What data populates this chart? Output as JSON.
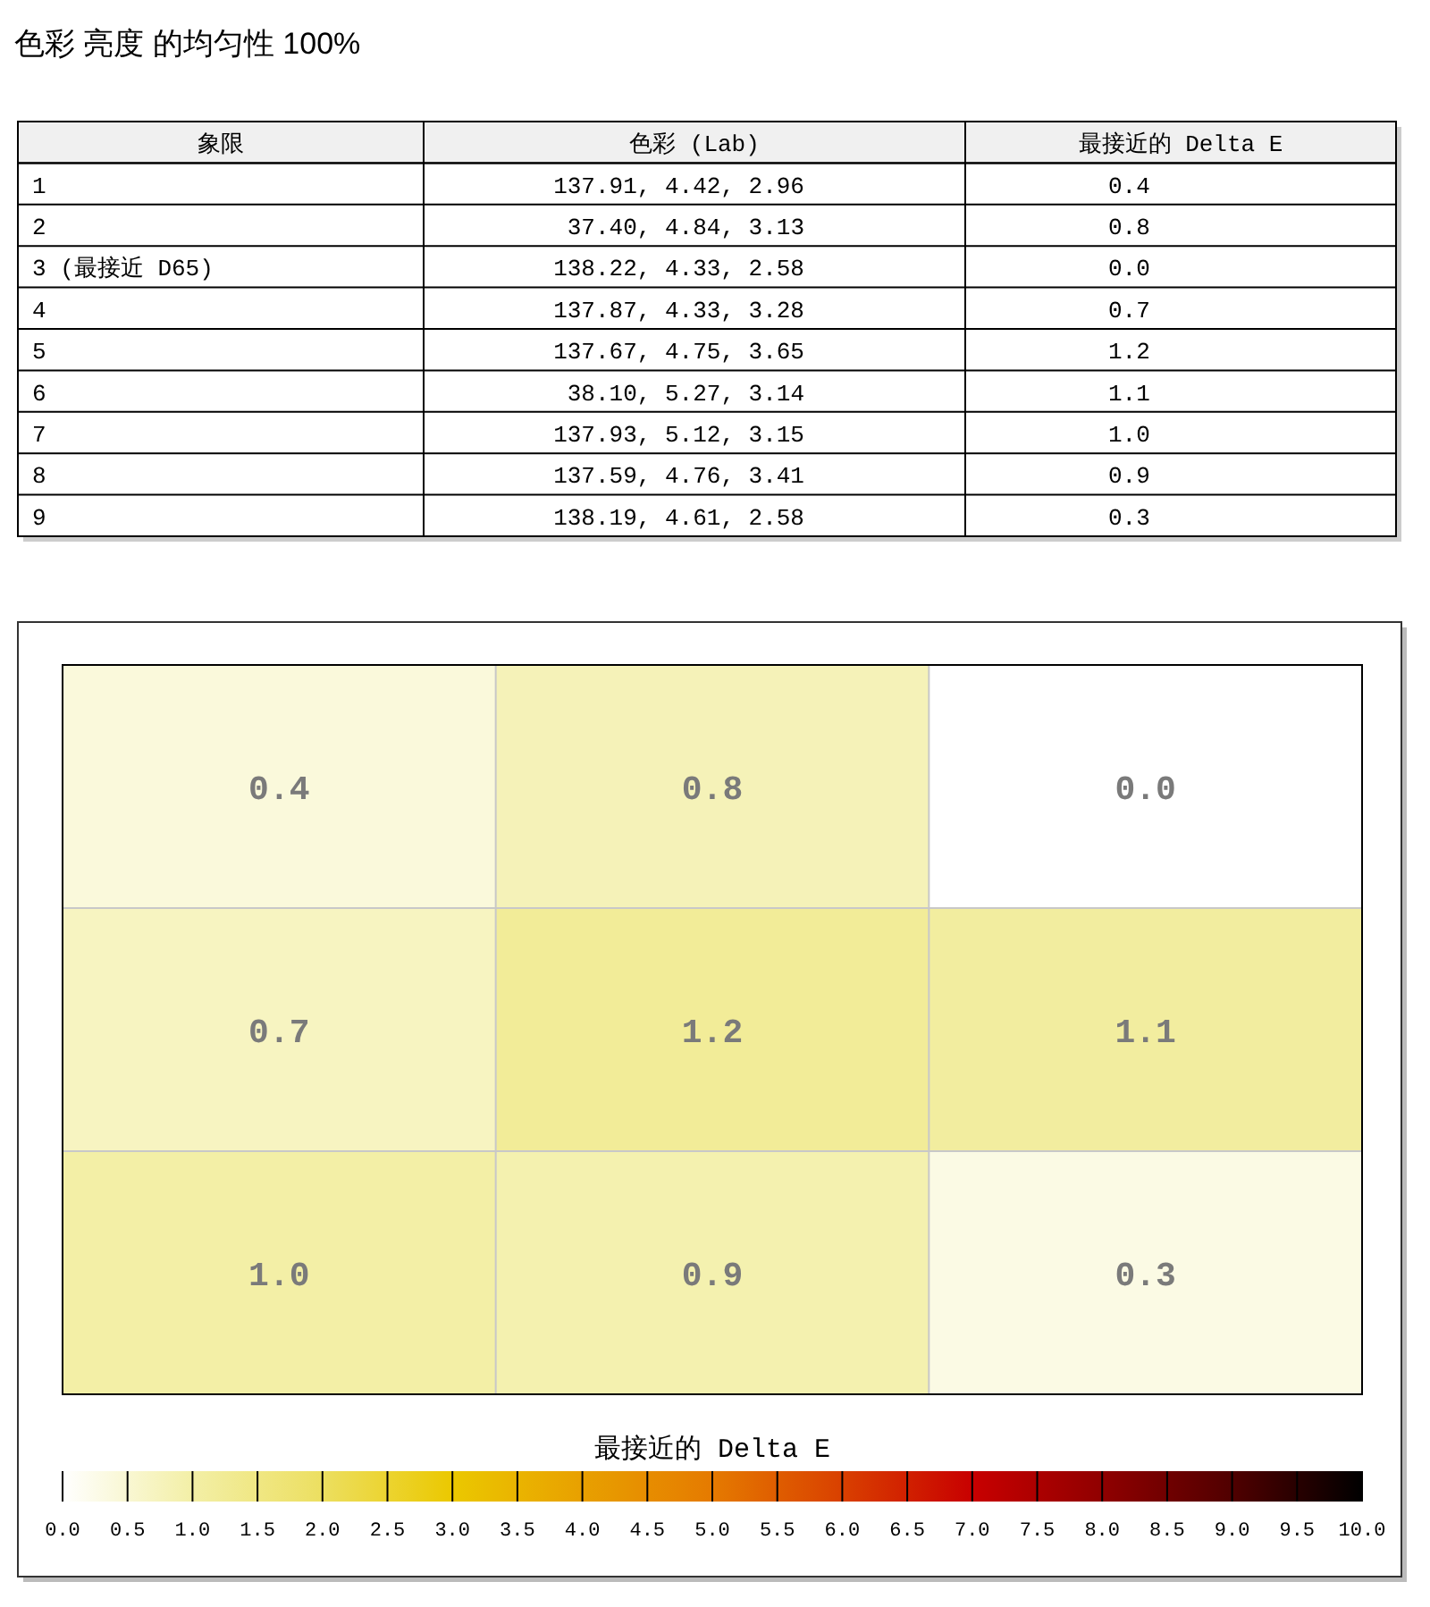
{
  "chart_data": [
    {
      "type": "other",
      "title": "色彩 亮度 的均匀性 100%",
      "categories": [
        "象限",
        "色彩 (Lab)",
        "最接近的 Delta E"
      ],
      "cell_labels": [
        [
          "1",
          "137.91,   4.42,   2.96",
          "0.4"
        ],
        [
          "2",
          "37.40,   4.84,   3.13",
          "0.8"
        ],
        [
          "3 (最接近 D65)",
          "138.22,   4.33,   2.58",
          "0.0"
        ],
        [
          "4",
          "137.87,   4.33,   3.28",
          "0.7"
        ],
        [
          "5",
          "137.67,   4.75,   3.65",
          "1.2"
        ],
        [
          "6",
          "38.10,   5.27,   3.14",
          "1.1"
        ],
        [
          "7",
          "137.93,   5.12,   3.15",
          "1.0"
        ],
        [
          "8",
          "137.59,   4.76,   3.41",
          "0.9"
        ],
        [
          "9",
          "138.19,   4.61,   2.58",
          "0.3"
        ]
      ]
    },
    {
      "type": "heatmap",
      "categories": [
        null,
        null,
        null
      ],
      "y_categories": [
        null,
        null,
        null
      ],
      "cells": [
        [
          0.4,
          0.8,
          0.0
        ],
        [
          0.7,
          1.2,
          1.1
        ],
        [
          1.0,
          0.9,
          0.3
        ]
      ],
      "cell_labels": [
        [
          "0.4",
          "0.8",
          "0.0"
        ],
        [
          "0.7",
          "1.2",
          "1.1"
        ],
        [
          "1.0",
          "0.9",
          "0.3"
        ]
      ],
      "clabel": "最接近的 Delta E",
      "clim": [
        0,
        10
      ],
      "cticks": [
        {
          "value": 0,
          "label": "0.0"
        },
        {
          "value": 0.5,
          "label": "0.5"
        },
        {
          "value": 1,
          "label": "1.0"
        },
        {
          "value": 1.5,
          "label": "1.5"
        },
        {
          "value": 2,
          "label": "2.0"
        },
        {
          "value": 2.5,
          "label": "2.5"
        },
        {
          "value": 3,
          "label": "3.0"
        },
        {
          "value": 3.5,
          "label": "3.5"
        },
        {
          "value": 4,
          "label": "4.0"
        },
        {
          "value": 4.5,
          "label": "4.5"
        },
        {
          "value": 5,
          "label": "5.0"
        },
        {
          "value": 5.5,
          "label": "5.5"
        },
        {
          "value": 6,
          "label": "6.0"
        },
        {
          "value": 6.5,
          "label": "6.5"
        },
        {
          "value": 7,
          "label": "7.0"
        },
        {
          "value": 7.5,
          "label": "7.5"
        },
        {
          "value": 8,
          "label": "8.0"
        },
        {
          "value": 8.5,
          "label": "8.5"
        },
        {
          "value": 9,
          "label": "9.0"
        },
        {
          "value": 9.5,
          "label": "9.5"
        },
        {
          "value": 10,
          "label": "10.0"
        }
      ],
      "grid": true
    }
  ]
}
